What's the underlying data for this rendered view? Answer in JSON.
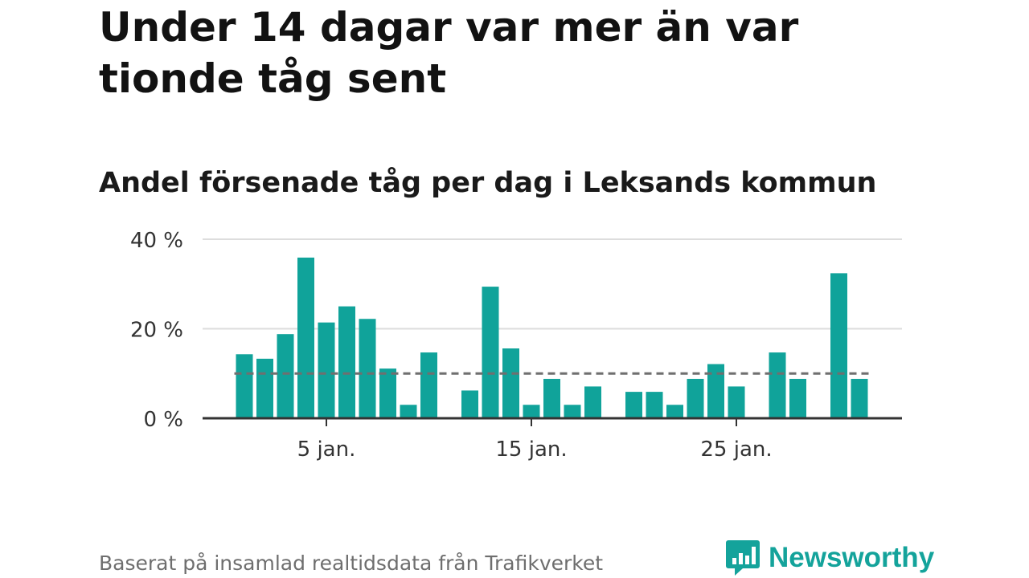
{
  "title": "Under 14 dagar var mer än var tionde tåg sent",
  "subtitle": "Andel försenade tåg per dag i Leksands kommun",
  "source": "Baserat på insamlad realtidsdata från Trafikverket",
  "logo": {
    "name": "Newsworthy",
    "icon": "newsworthy-chart-bubble-icon"
  },
  "colors": {
    "bar": "#10a39a",
    "reference_line": "#6f6f6f",
    "grid": "#dddddd",
    "axis": "#333333",
    "logo": "#14a39b"
  },
  "chart_data": {
    "type": "bar",
    "title": "Andel försenade tåg per dag i Leksands kommun",
    "xlabel": "",
    "ylabel": "",
    "x": [
      1,
      2,
      3,
      4,
      5,
      6,
      7,
      8,
      9,
      10,
      11,
      12,
      13,
      14,
      15,
      16,
      17,
      18,
      19,
      20,
      21,
      22,
      23,
      24,
      25,
      26,
      27,
      28,
      29,
      30,
      31
    ],
    "values": [
      14.3,
      13.3,
      18.8,
      35.9,
      21.4,
      25.0,
      22.2,
      11.1,
      3.0,
      14.7,
      0,
      6.2,
      29.4,
      15.6,
      3.0,
      8.8,
      3.0,
      7.1,
      0,
      5.9,
      5.9,
      3.0,
      8.8,
      12.1,
      7.1,
      0,
      14.7,
      8.8,
      0,
      32.4,
      8.8
    ],
    "unit": "%",
    "ylim": [
      0,
      40
    ],
    "yticks": [
      0,
      20,
      40
    ],
    "ytick_labels": [
      "0 %",
      "20 %",
      "40 %"
    ],
    "xticks": [
      5,
      15,
      25
    ],
    "xtick_labels": [
      "5 jan.",
      "15 jan.",
      "25 jan."
    ],
    "reference_line": 10,
    "grid": true,
    "legend": "none"
  }
}
